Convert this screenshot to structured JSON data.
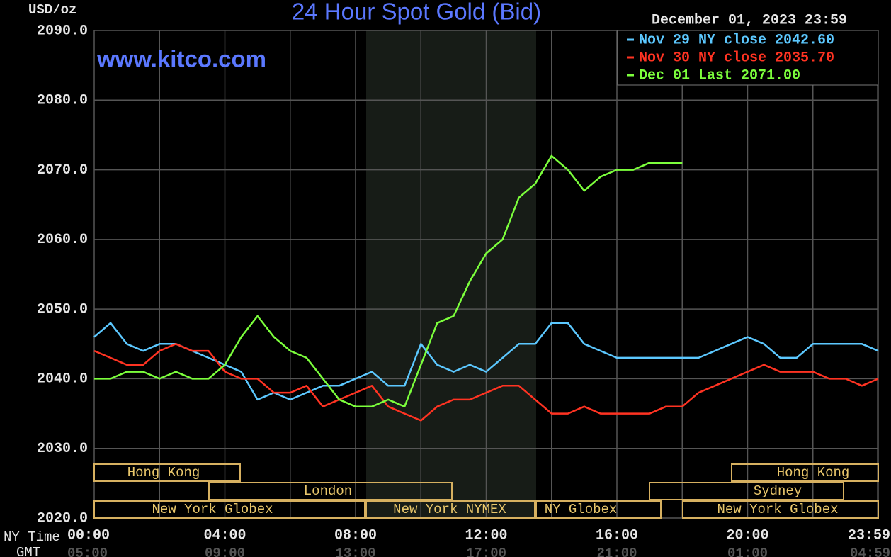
{
  "chart_data": {
    "type": "line",
    "title": "24 Hour Spot Gold (Bid)",
    "y_label": "USD/oz",
    "watermark": "www.kitco.com",
    "date_label": "December 01, 2023 23:59",
    "x_label": "NY Time",
    "x2_label": "GMT",
    "x": [
      0,
      0.5,
      1,
      1.5,
      2,
      2.5,
      3,
      3.5,
      4,
      4.5,
      5,
      5.5,
      6,
      6.5,
      7,
      7.5,
      8,
      8.5,
      9,
      9.5,
      10,
      10.5,
      11,
      11.5,
      12,
      12.5,
      13,
      13.5,
      14,
      14.5,
      15,
      15.5,
      16,
      16.5,
      17,
      17.5,
      18,
      18.5,
      19,
      19.5,
      20,
      20.5,
      21,
      21.5,
      22,
      22.5,
      23,
      23.5,
      24
    ],
    "xlim": [
      0,
      24
    ],
    "xticks": [
      {
        "value": 0,
        "label": "00:00"
      },
      {
        "value": 4,
        "label": "04:00"
      },
      {
        "value": 8,
        "label": "08:00"
      },
      {
        "value": 12,
        "label": "12:00"
      },
      {
        "value": 16,
        "label": "16:00"
      },
      {
        "value": 20,
        "label": "20:00"
      },
      {
        "value": 23.98,
        "label": "23:59"
      }
    ],
    "x2ticks": [
      "05:00",
      "09:00",
      "13:00",
      "17:00",
      "21:00",
      "01:00",
      "04:59"
    ],
    "ylim": [
      2020,
      2090
    ],
    "yticks": [
      {
        "value": 2020,
        "label": "2020.0"
      },
      {
        "value": 2030,
        "label": "2030.0"
      },
      {
        "value": 2040,
        "label": "2040.0"
      },
      {
        "value": 2050,
        "label": "2050.0"
      },
      {
        "value": 2060,
        "label": "2060.0"
      },
      {
        "value": 2070,
        "label": "2070.0"
      },
      {
        "value": 2080,
        "label": "2080.0"
      },
      {
        "value": 2090,
        "label": "2090.0"
      }
    ],
    "grid": true,
    "legend": "upper right",
    "sessions": [
      "Hong Kong",
      "London",
      "New York Globex",
      "New York NYMEX",
      "NY Globex",
      "Hong Kong",
      "Sydney",
      "New York Globex"
    ],
    "series": [
      {
        "name": "Nov 29 NY close 2042.60",
        "color": "#5cc8ff",
        "values": [
          2046,
          2048,
          2045,
          2044,
          2045,
          2045,
          2044,
          2043,
          2042,
          2041,
          2037,
          2038,
          2037,
          2038,
          2039,
          2039,
          2040,
          2041,
          2039,
          2039,
          2045,
          2042,
          2041,
          2042,
          2041,
          2043,
          2045,
          2045,
          2048,
          2048,
          2045,
          2044,
          2043,
          2043,
          2043,
          2043,
          2043,
          2043,
          2044,
          2045,
          2046,
          2045,
          2043,
          2043,
          2045,
          2045,
          2045,
          2045,
          2044
        ]
      },
      {
        "name": "Nov 30 NY close 2035.70",
        "color": "#ff3322",
        "values": [
          2044,
          2043,
          2042,
          2042,
          2044,
          2045,
          2044,
          2044,
          2041,
          2040,
          2040,
          2038,
          2038,
          2039,
          2036,
          2037,
          2038,
          2039,
          2036,
          2035,
          2034,
          2036,
          2037,
          2037,
          2038,
          2039,
          2039,
          2037,
          2035,
          2035,
          2036,
          2035,
          2035,
          2035,
          2035,
          2036,
          2036,
          2038,
          2039,
          2040,
          2041,
          2042,
          2041,
          2041,
          2041,
          2040,
          2040,
          2039,
          2040
        ]
      },
      {
        "name": "Dec 01 Last 2071.00",
        "color": "#7cff3c",
        "values": [
          2040,
          2040,
          2041,
          2041,
          2040,
          2041,
          2040,
          2040,
          2042,
          2046,
          2049,
          2046,
          2044,
          2043,
          2040,
          2037,
          2036,
          2036,
          2037,
          2036,
          2042,
          2048,
          2049,
          2054,
          2058,
          2060,
          2066,
          2068,
          2072,
          2070,
          2067,
          2069,
          2070,
          2070,
          2071,
          2071,
          2071,
          null,
          null,
          null,
          null,
          null,
          null,
          null,
          null,
          null,
          null,
          null,
          null
        ]
      }
    ]
  }
}
